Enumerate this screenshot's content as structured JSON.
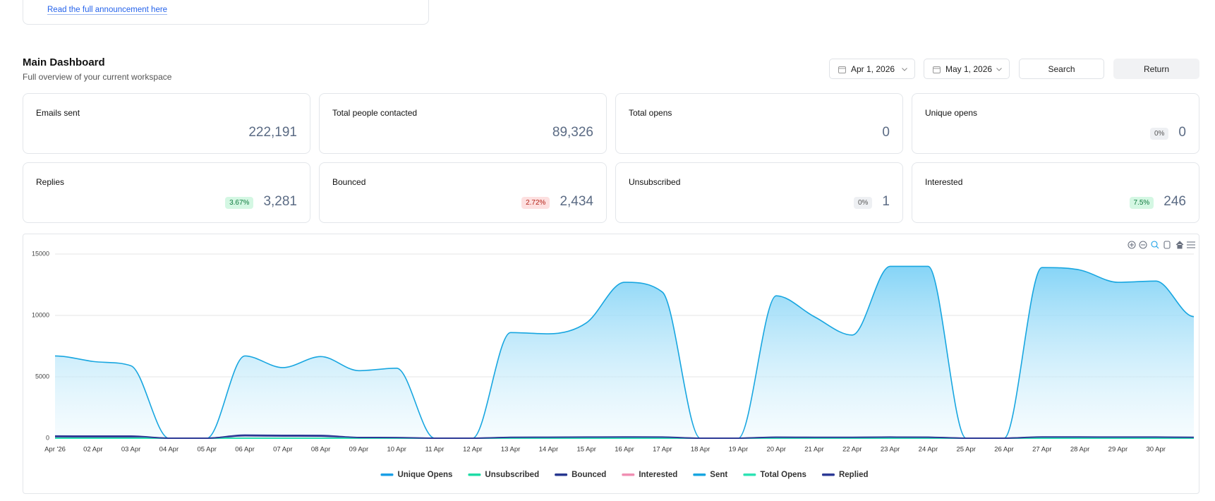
{
  "announcement": {
    "link": "Read the full announcement here"
  },
  "header": {
    "title": "Main Dashboard",
    "subtitle": "Full overview of your current workspace"
  },
  "controls": {
    "start_date": "Apr 1, 2026",
    "end_date": "May 1, 2026",
    "search": "Search",
    "return": "Return"
  },
  "stats": [
    {
      "label": "Emails sent",
      "value": "222,191"
    },
    {
      "label": "Total people contacted",
      "value": "89,326"
    },
    {
      "label": "Total opens",
      "value": "0"
    },
    {
      "label": "Unique opens",
      "value": "0",
      "badge": "0%",
      "badge_color": "#eef0f3"
    },
    {
      "label": "Replies",
      "value": "3,281",
      "badge": "3.67%",
      "badge_color": "#d4f7e3"
    },
    {
      "label": "Bounced",
      "value": "2,434",
      "badge": "2.72%",
      "badge_color": "#fde0e0"
    },
    {
      "label": "Unsubscribed",
      "value": "1",
      "badge": "0%",
      "badge_color": "#eef0f3"
    },
    {
      "label": "Interested",
      "value": "246",
      "badge": "7.5%",
      "badge_color": "#d4f7e3"
    }
  ],
  "chart_data": {
    "type": "area",
    "categories": [
      "Apr '26",
      "02 Apr",
      "03 Apr",
      "04 Apr",
      "05 Apr",
      "06 Apr",
      "07 Apr",
      "08 Apr",
      "09 Apr",
      "10 Apr",
      "11 Apr",
      "12 Apr",
      "13 Apr",
      "14 Apr",
      "15 Apr",
      "16 Apr",
      "17 Apr",
      "18 Apr",
      "19 Apr",
      "20 Apr",
      "21 Apr",
      "22 Apr",
      "23 Apr",
      "24 Apr",
      "25 Apr",
      "26 Apr",
      "27 Apr",
      "28 Apr",
      "29 Apr",
      "30 Apr",
      null
    ],
    "series": [
      {
        "name": "Unique Opens",
        "color": "#1a9fe6",
        "values": [
          0,
          0,
          0,
          0,
          0,
          0,
          0,
          0,
          0,
          0,
          0,
          0,
          0,
          0,
          0,
          0,
          0,
          0,
          0,
          0,
          0,
          0,
          0,
          0,
          0,
          0,
          0,
          0,
          0,
          0,
          0
        ]
      },
      {
        "name": "Unsubscribed",
        "color": "#1fdca6",
        "values": [
          0,
          0,
          0,
          0,
          0,
          0,
          0,
          0,
          0,
          0,
          0,
          0,
          0,
          0,
          0,
          0,
          0,
          0,
          0,
          0,
          0,
          0,
          0,
          1,
          0,
          0,
          0,
          0,
          0,
          0,
          0
        ]
      },
      {
        "name": "Bounced",
        "color": "#27378f",
        "values": [
          120,
          110,
          110,
          0,
          0,
          200,
          180,
          170,
          40,
          30,
          0,
          0,
          50,
          60,
          70,
          80,
          70,
          0,
          0,
          70,
          60,
          60,
          80,
          70,
          0,
          0,
          80,
          80,
          70,
          70,
          60
        ]
      },
      {
        "name": "Interested",
        "color": "#f08fb3",
        "values": [
          10,
          10,
          10,
          0,
          0,
          10,
          10,
          10,
          10,
          10,
          0,
          0,
          10,
          10,
          10,
          10,
          10,
          0,
          0,
          10,
          10,
          10,
          10,
          10,
          0,
          0,
          10,
          10,
          10,
          10,
          10
        ]
      },
      {
        "name": "Sent",
        "color": "#18a6e0",
        "fill": true,
        "values": [
          6700,
          6250,
          5900,
          0,
          0,
          6700,
          5750,
          6650,
          5500,
          5700,
          0,
          0,
          8600,
          8500,
          9400,
          12700,
          11900,
          0,
          0,
          11600,
          9900,
          8400,
          14000,
          14000,
          0,
          0,
          13900,
          13700,
          12700,
          12800,
          9900
        ]
      },
      {
        "name": "Total Opens",
        "color": "#2ee3b4",
        "values": [
          0,
          0,
          0,
          0,
          0,
          0,
          0,
          0,
          0,
          0,
          0,
          0,
          0,
          0,
          0,
          0,
          0,
          0,
          0,
          0,
          0,
          0,
          0,
          0,
          0,
          0,
          0,
          0,
          0,
          0,
          0
        ]
      },
      {
        "name": "Replied",
        "color": "#2d3a96",
        "values": [
          180,
          170,
          170,
          0,
          0,
          250,
          230,
          220,
          60,
          50,
          0,
          0,
          70,
          80,
          90,
          100,
          90,
          0,
          0,
          80,
          70,
          70,
          90,
          80,
          0,
          0,
          100,
          100,
          90,
          90,
          70
        ]
      }
    ],
    "ylim": [
      0,
      15000
    ],
    "yticks": [
      0,
      5000,
      10000,
      15000
    ],
    "grid": true,
    "legend": "bottom"
  }
}
